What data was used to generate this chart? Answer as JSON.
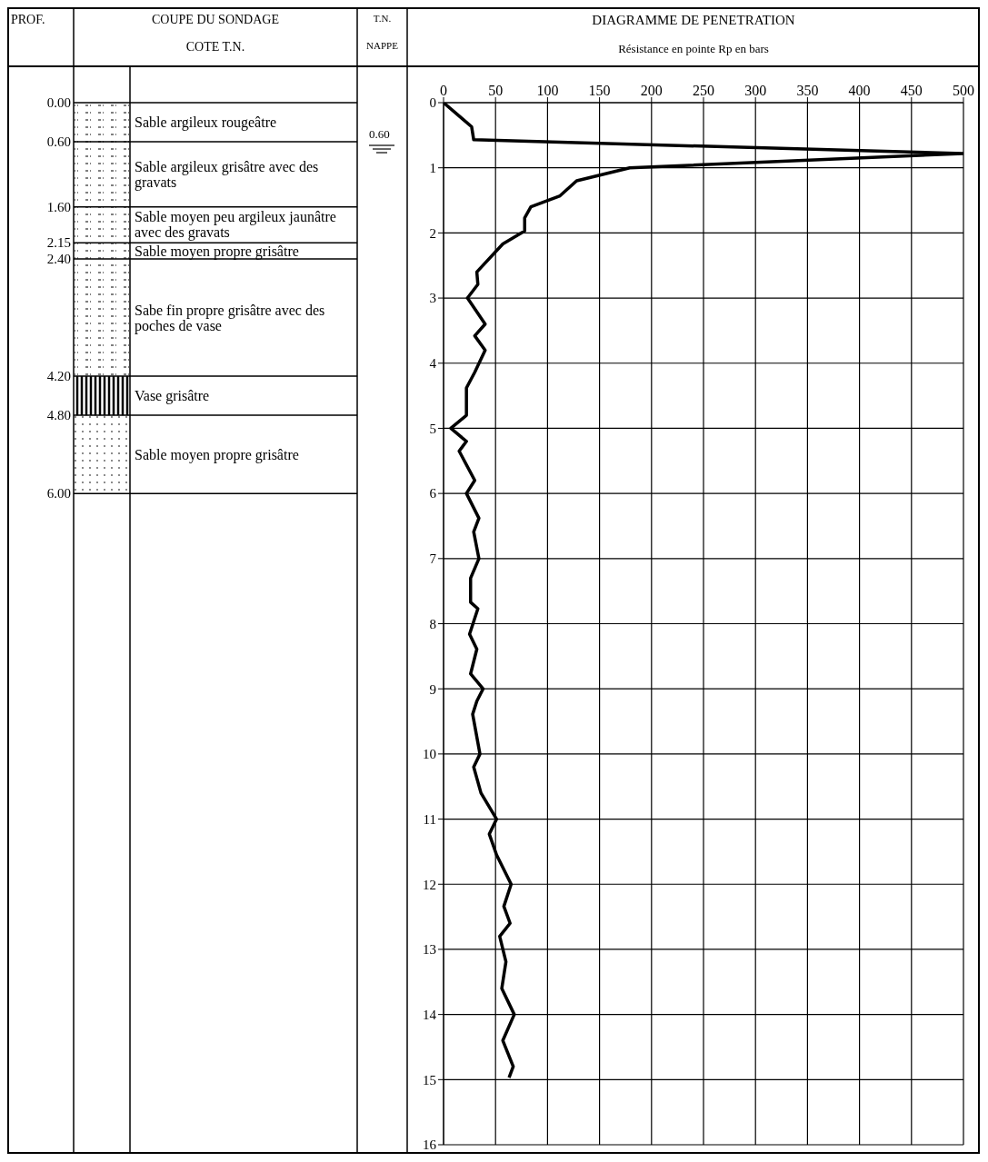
{
  "chart_data": {
    "type": "line",
    "title": "DIAGRAMME DE PENETRATION",
    "xlabel": "Résistance en pointe Rp en bars",
    "annotations": [
      "PROF.",
      "COUPE DU SONDAGE",
      "COTE T.N.",
      "T.N.",
      "NAPPE",
      "0.60",
      "0.00",
      "0.60",
      "1.60",
      "2.15",
      "2.40",
      "4.20",
      "4.80",
      "6.00",
      "Sable argileux rougeâtre",
      "Sable argileux grisâtre avec des gravats",
      "Sable moyen peu argileux jaunâtre avec des gravats",
      "Sable moyen propre grisâtre",
      "Sabe fin propre grisâtre avec des poches de vase",
      "Vase grisâtre",
      "Sable moyen propre grisâtre"
    ],
    "series": [
      {
        "color": "#000000",
        "x": [
          0,
          27,
          29,
          500,
          179,
          128,
          112,
          84,
          78,
          78,
          57,
          32,
          33,
          23,
          40,
          30,
          40,
          30,
          22,
          22,
          7,
          22,
          15,
          30,
          22,
          34,
          29,
          34,
          26,
          26,
          33,
          25,
          32,
          26,
          38,
          32,
          28,
          35,
          29,
          36,
          51,
          44,
          51,
          65,
          58,
          64,
          54,
          60,
          56,
          68,
          57,
          67,
          63
        ],
        "values": [
          0,
          0.37,
          0.57,
          0.78,
          1.0,
          1.2,
          1.43,
          1.6,
          1.77,
          1.97,
          2.17,
          2.6,
          2.79,
          3.0,
          3.4,
          3.58,
          3.8,
          4.14,
          4.38,
          4.8,
          5.0,
          5.2,
          5.35,
          5.8,
          6.0,
          6.38,
          6.59,
          7.0,
          7.3,
          7.67,
          7.77,
          8.16,
          8.39,
          8.77,
          9.0,
          9.19,
          9.39,
          10.0,
          10.2,
          10.6,
          11.0,
          11.23,
          11.55,
          12.0,
          12.34,
          12.6,
          12.8,
          13.19,
          13.6,
          14.0,
          14.4,
          14.8,
          14.97
        ]
      }
    ],
    "xlim": [
      0,
      500
    ],
    "xticks": [
      0,
      50,
      100,
      150,
      200,
      250,
      300,
      350,
      400,
      450,
      500
    ],
    "ylim": [
      16,
      0
    ],
    "yticks": [
      0,
      1,
      2,
      3,
      4,
      5,
      6,
      7,
      8,
      9,
      10,
      11,
      12,
      13,
      14,
      15,
      16
    ],
    "grid": true
  }
}
